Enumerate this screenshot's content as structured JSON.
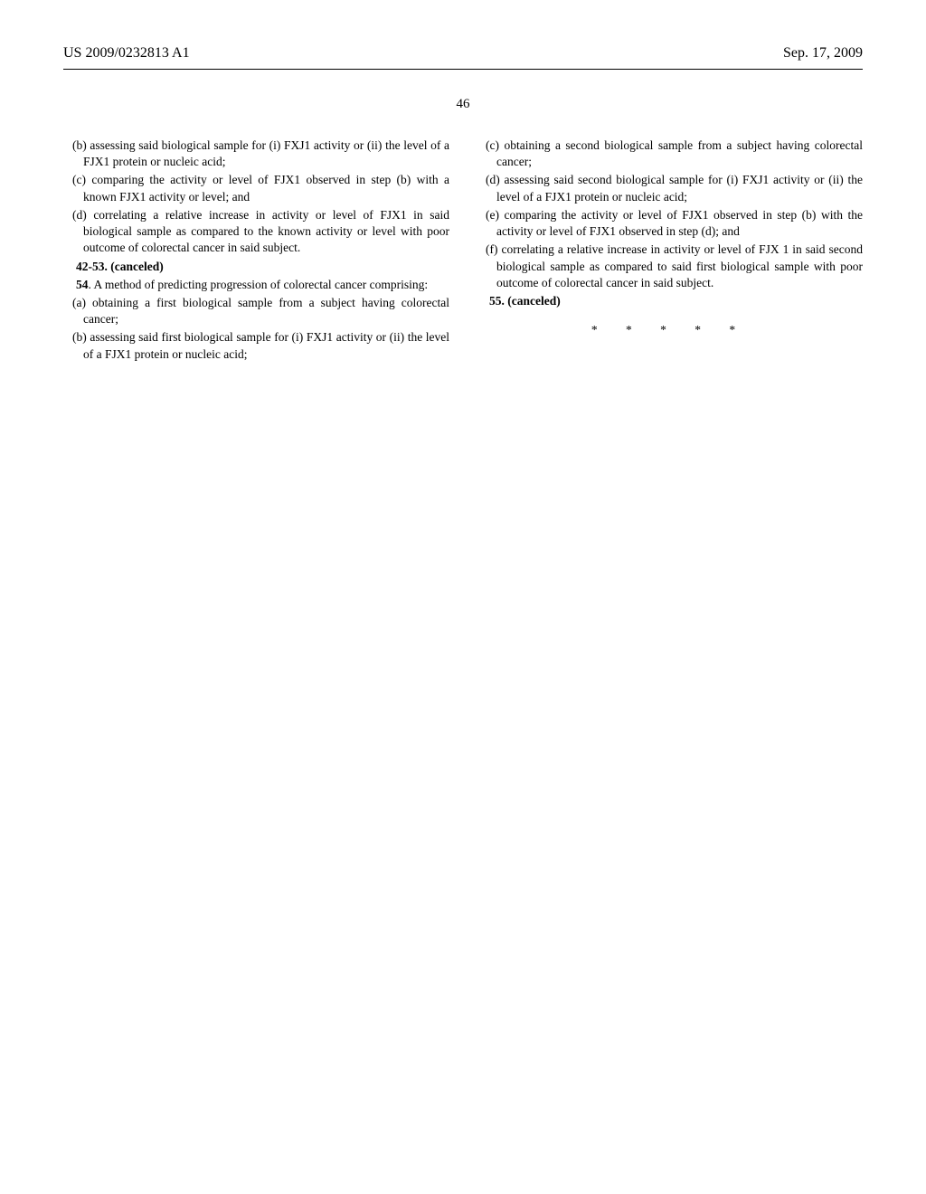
{
  "header": {
    "pub_number": "US 2009/0232813 A1",
    "pub_date": "Sep. 17, 2009"
  },
  "page_number": "46",
  "left_column": {
    "p1": "(b) assessing said biological sample for (i) FXJ1 activity or (ii) the level of a FJX1 protein or nucleic acid;",
    "p2": "(c) comparing the activity or level of FJX1 observed in step (b) with a known FJX1 activity or level; and",
    "p3": "(d) correlating a relative increase in activity or level of FJX1 in said biological sample as compared to the known activity or level with poor outcome of colorectal cancer in said subject.",
    "canceled1": "42-53. (canceled)",
    "claim54a": "54. A method of predicting progression of colorectal cancer comprising:",
    "p4": "(a) obtaining a first biological sample from a subject having colorectal cancer;",
    "p5": "(b) assessing said first biological sample for (i) FXJ1 activity or (ii) the level of a FJX1 protein or nucleic acid;"
  },
  "right_column": {
    "p1": "(c) obtaining a second biological sample from a subject having colorectal cancer;",
    "p2": "(d) assessing said second biological sample for (i) FXJ1 activity or (ii) the level of a FJX1 protein or nucleic acid;",
    "p3": "(e) comparing the activity or level of FJX1 observed in step (b) with the activity or level of FJX1 observed in step (d); and",
    "p4": "(f) correlating a relative increase in activity or level of FJX 1 in said second biological sample as compared to said first biological sample with poor outcome of colorectal cancer in said subject.",
    "canceled2": "55. (canceled)",
    "asterisks": "* * * * *"
  }
}
